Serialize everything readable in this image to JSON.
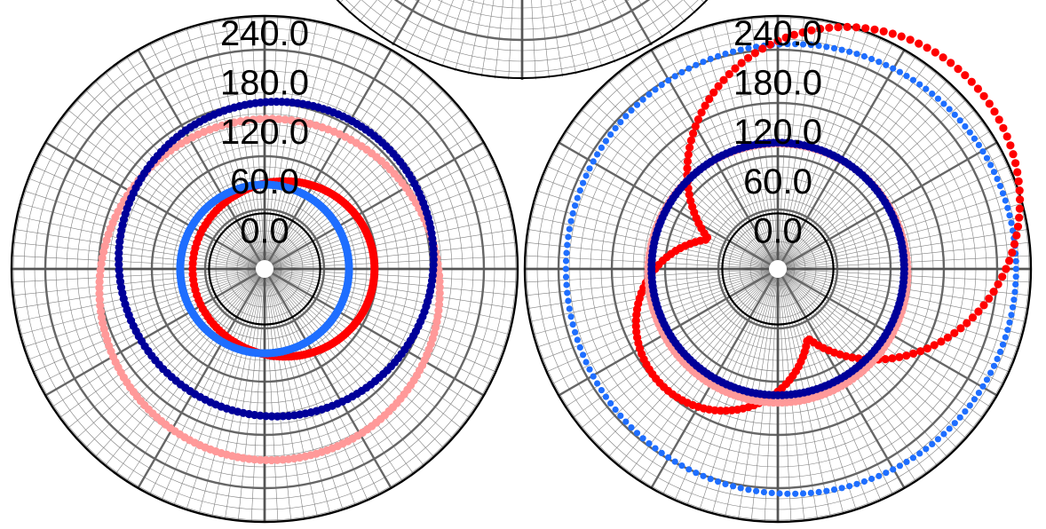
{
  "chart_data": [
    {
      "type": "polar-scatter",
      "title": "",
      "r_ticks": [
        "0.0",
        "60.0",
        "120.0",
        "180.0",
        "240.0"
      ],
      "r_tick_values": [
        0,
        60,
        120,
        180,
        240
      ],
      "r_range": [
        -60,
        240
      ],
      "angular_spokes_deg": 30,
      "grid": true,
      "legend": "none",
      "series": [
        {
          "color": "#FF0000",
          "marker": "dot",
          "shape": "offset-circle",
          "params": {
            "R": 43,
            "dx_deg0": 23,
            "dy_deg90": 0
          }
        },
        {
          "color": "#1E6EFF",
          "marker": "dot",
          "shape": "offset-circle",
          "params": {
            "R": 35,
            "dx_deg0": 0,
            "dy_deg90": 0
          }
        },
        {
          "color": "#FF9999",
          "marker": "dot",
          "shape": "offset-circle",
          "params": {
            "R": 140,
            "dx_deg0": 6,
            "dy_deg90": -25
          }
        },
        {
          "color": "#000099",
          "marker": "dot",
          "shape": "offset-circle",
          "params": {
            "R": 124,
            "dx_deg0": 14,
            "dy_deg90": 12
          }
        }
      ]
    },
    {
      "type": "polar-scatter",
      "title": "",
      "r_ticks": [
        "0.0",
        "60.0",
        "120.0",
        "180.0",
        "240.0"
      ],
      "r_tick_values": [
        0,
        60,
        120,
        180,
        240
      ],
      "r_range": [
        -60,
        240
      ],
      "angular_spokes_deg": 30,
      "grid": true,
      "legend": "none",
      "series": [
        {
          "color": "#1E6EFF",
          "marker": "dot",
          "shape": "offset-circle",
          "params": {
            "R": 206,
            "dx_deg0": 16,
            "dy_deg90": 0
          }
        },
        {
          "color": "#FF0000",
          "marker": "dot",
          "shape": "limacon",
          "params": {
            "A": 64,
            "B": 172,
            "rot_deg": 45
          }
        },
        {
          "color": "#FF9999",
          "marker": "dot",
          "shape": "offset-circle",
          "params": {
            "R": 90,
            "dx_deg0": 0,
            "dy_deg90": -5
          }
        },
        {
          "color": "#000099",
          "marker": "dot",
          "shape": "offset-circle",
          "params": {
            "R": 86,
            "dx_deg0": 0,
            "dy_deg90": 0
          }
        }
      ]
    }
  ]
}
